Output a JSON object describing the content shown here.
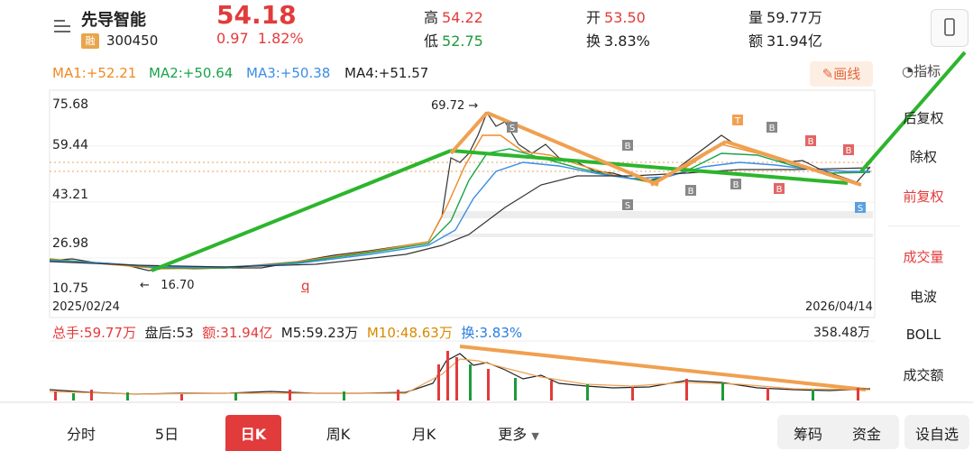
{
  "stock": {
    "name": "先导智能",
    "badge": "融",
    "code": "300450",
    "price": "54.18",
    "change": "0.97",
    "change_pct": "1.82%"
  },
  "stats": {
    "high_label": "高",
    "high": "54.22",
    "low_label": "低",
    "low": "52.75",
    "open_label": "开",
    "open": "53.50",
    "turnover_label": "换",
    "turnover": "3.83%",
    "volume_label": "量",
    "volume": "59.77万",
    "amount_label": "额",
    "amount": "31.94亿"
  },
  "draw_button": "✎画线",
  "indicator_button": "指标",
  "ma": {
    "ma1": "MA1:+52.21",
    "ma2": "MA2:+50.64",
    "ma3": "MA3:+50.38",
    "ma4": "MA4:+51.57"
  },
  "axis": {
    "y1": "75.68",
    "y2": "59.44",
    "y3": "43.21",
    "y4": "26.98",
    "y5": "10.75",
    "start_date": "2025/02/24",
    "end_date": "2026/04/14"
  },
  "annotations": {
    "high_marker": "69.72",
    "low_marker": "16.70",
    "q_marker": "q"
  },
  "volume_info": {
    "total": "总手:59.77万",
    "after_hours": "盘后:53",
    "amount": "额:31.94亿",
    "m5": "M5:59.23万",
    "m10": "M10:48.63万",
    "turnover": "换:3.83%",
    "max": "358.48万"
  },
  "side_menu": {
    "back_adjust": "后复权",
    "no_adjust": "除权",
    "forward_adjust": "前复权",
    "volume": "成交量",
    "wave": "电波",
    "boll": "BOLL",
    "amount": "成交额"
  },
  "tabs": {
    "t1": "分时",
    "t2": "5日",
    "t3": "日K",
    "t4": "周K",
    "t5": "月K",
    "t6": "更多"
  },
  "bottom_buttons": {
    "chips": "筹码",
    "funds": "资金",
    "custom": "设自选"
  },
  "colors": {
    "up": "#e23b3b",
    "down": "#1e9b3a",
    "ma1": "#f08a24",
    "ma2": "#1aa34a",
    "ma3": "#3a8ee6",
    "ma4": "#222222",
    "active_tab": "#e23b3b",
    "trend_green": "#2db52d",
    "trend_orange": "#f0a050"
  }
}
